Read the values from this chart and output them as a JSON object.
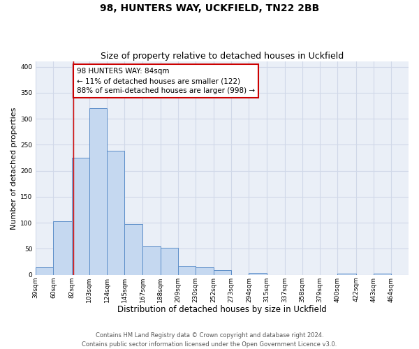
{
  "title": "98, HUNTERS WAY, UCKFIELD, TN22 2BB",
  "subtitle": "Size of property relative to detached houses in Uckfield",
  "xlabel": "Distribution of detached houses by size in Uckfield",
  "ylabel": "Number of detached properties",
  "bar_left_edges": [
    39,
    60,
    82,
    103,
    124,
    145,
    167,
    188,
    209,
    230,
    252,
    273,
    294,
    315,
    337,
    358,
    379,
    400,
    422,
    443
  ],
  "bar_widths": [
    21,
    22,
    21,
    21,
    21,
    22,
    21,
    21,
    21,
    22,
    21,
    21,
    21,
    22,
    21,
    21,
    21,
    22,
    21,
    21
  ],
  "bar_heights": [
    14,
    103,
    225,
    320,
    238,
    97,
    55,
    52,
    17,
    15,
    9,
    0,
    3,
    0,
    0,
    0,
    0,
    2,
    0,
    2
  ],
  "bar_color": "#c5d8f0",
  "bar_edge_color": "#5b8dc8",
  "grid_color": "#d0d8e8",
  "background_color": "#eaeff7",
  "property_line_x": 84,
  "property_line_color": "#cc0000",
  "annotation_text": "98 HUNTERS WAY: 84sqm\n← 11% of detached houses are smaller (122)\n88% of semi-detached houses are larger (998) →",
  "annotation_box_color": "#cc0000",
  "ylim": [
    0,
    410
  ],
  "xtick_labels": [
    "39sqm",
    "60sqm",
    "82sqm",
    "103sqm",
    "124sqm",
    "145sqm",
    "167sqm",
    "188sqm",
    "209sqm",
    "230sqm",
    "252sqm",
    "273sqm",
    "294sqm",
    "315sqm",
    "337sqm",
    "358sqm",
    "379sqm",
    "400sqm",
    "422sqm",
    "443sqm",
    "464sqm"
  ],
  "xtick_positions": [
    39,
    60,
    82,
    103,
    124,
    145,
    167,
    188,
    209,
    230,
    252,
    273,
    294,
    315,
    337,
    358,
    379,
    400,
    422,
    443,
    464
  ],
  "footer_text": "Contains HM Land Registry data © Crown copyright and database right 2024.\nContains public sector information licensed under the Open Government Licence v3.0.",
  "title_fontsize": 10,
  "subtitle_fontsize": 9,
  "xlabel_fontsize": 8.5,
  "ylabel_fontsize": 8,
  "tick_fontsize": 6.5,
  "annotation_fontsize": 7.5,
  "footer_fontsize": 6
}
